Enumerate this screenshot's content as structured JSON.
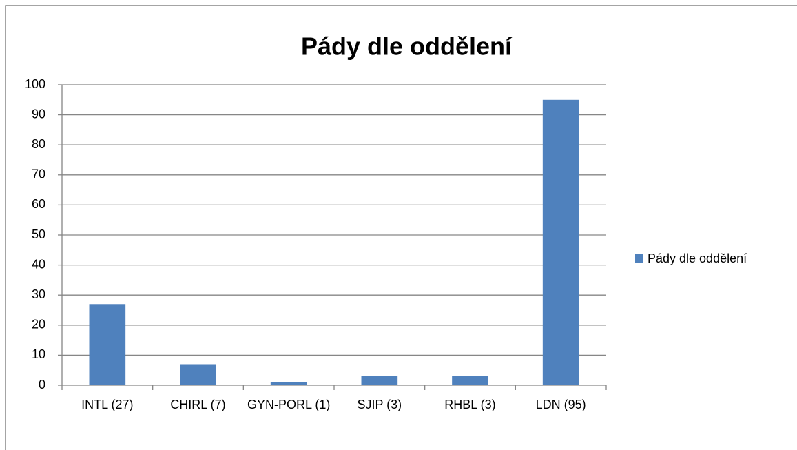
{
  "chart_data": {
    "type": "bar",
    "title": "Pády dle oddělení",
    "categories": [
      "INTL (27)",
      "CHIRL (7)",
      "GYN-PORL (1)",
      "SJIP (3)",
      "RHBL (3)",
      "LDN (95)"
    ],
    "series": [
      {
        "name": "Pády dle oddělení",
        "color": "#4f81bd",
        "values": [
          27,
          7,
          1,
          3,
          3,
          95
        ]
      }
    ],
    "ylim": [
      0,
      100
    ],
    "yticks": [
      0,
      10,
      20,
      30,
      40,
      50,
      60,
      70,
      80,
      90,
      100
    ],
    "grid": true,
    "legend": "right"
  }
}
